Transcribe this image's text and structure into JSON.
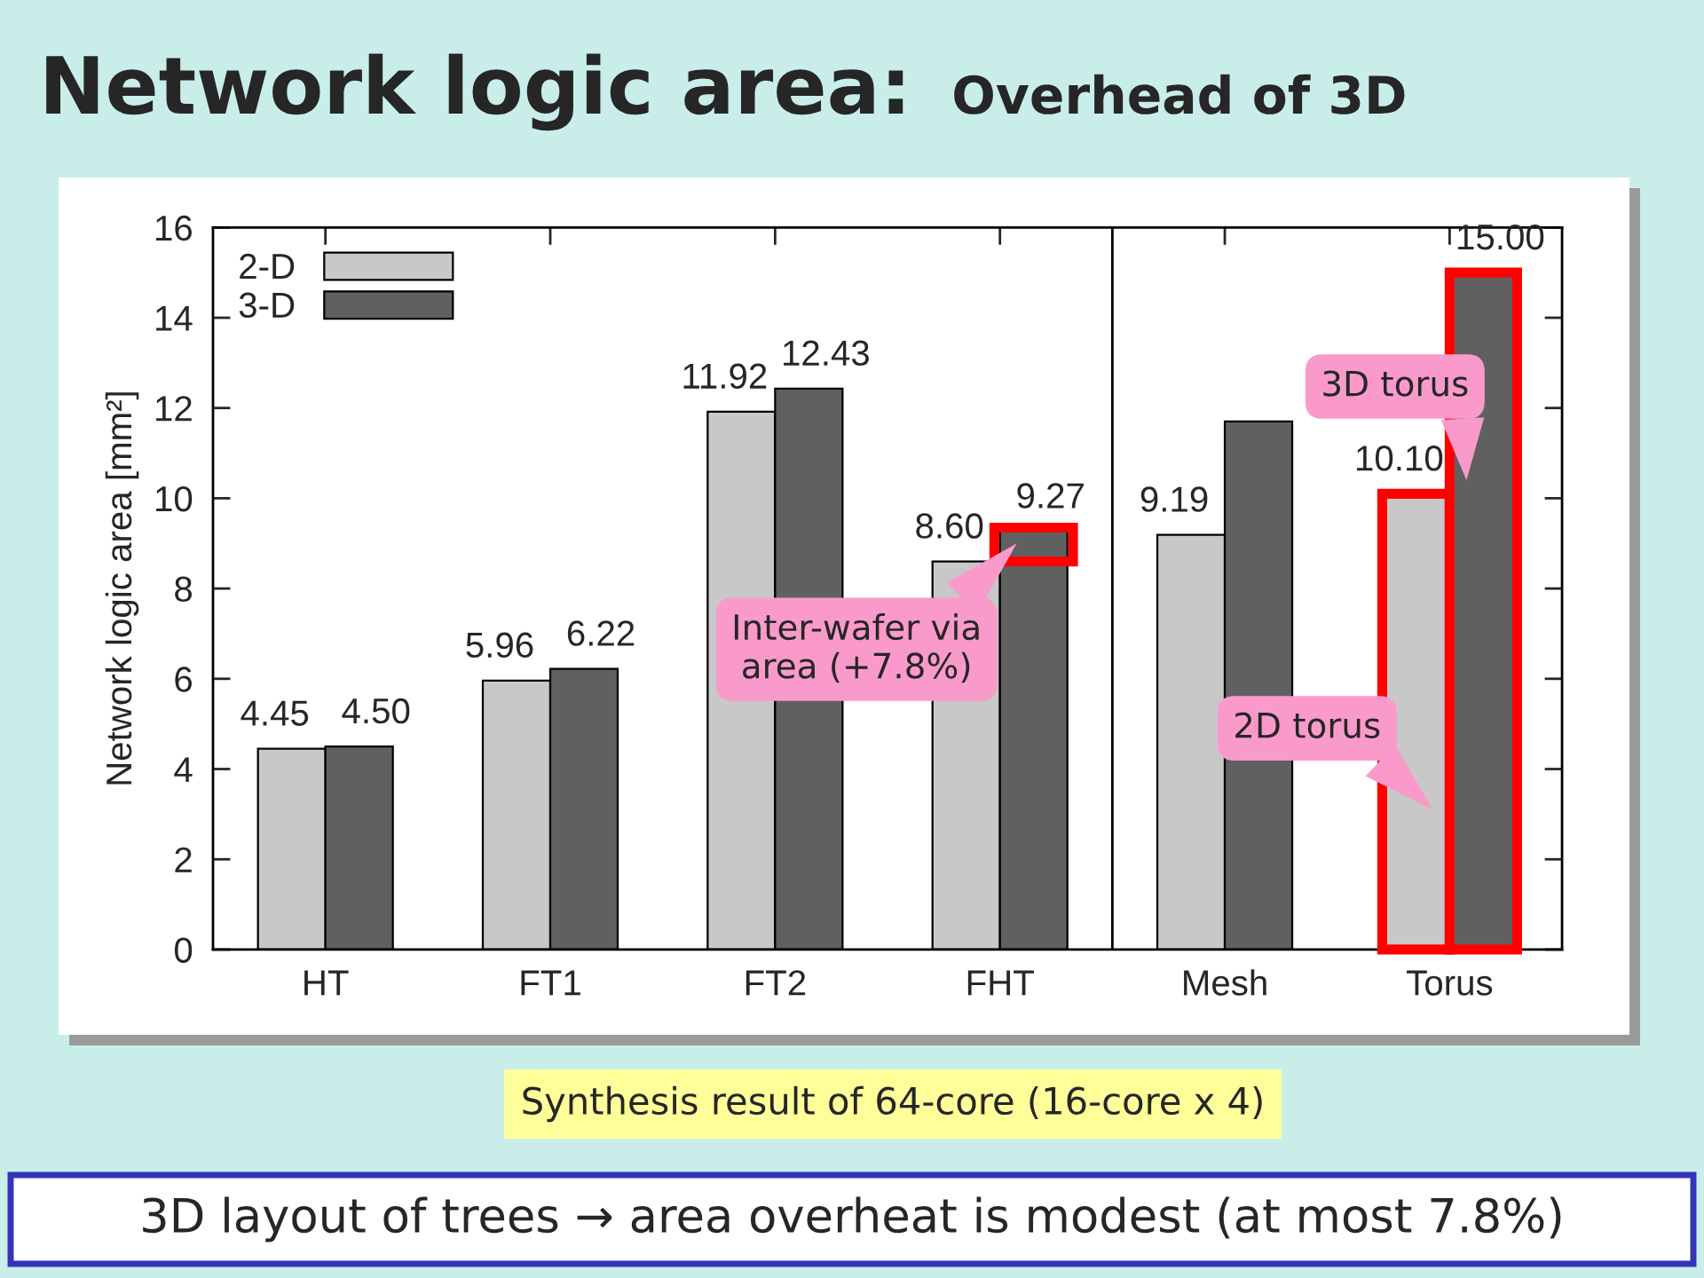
{
  "chart_data": {
    "type": "bar",
    "title": "Network logic area:",
    "subtitle": "Overhead of 3D",
    "ylabel": "Network logic area [mm²]",
    "categories": [
      "HT",
      "FT1",
      "FT2",
      "FHT",
      "Mesh",
      "Torus"
    ],
    "series": [
      {
        "name": "2-D",
        "color": "#c8c8c8",
        "values": [
          4.45,
          5.96,
          11.92,
          8.6,
          9.19,
          10.1
        ],
        "value_labels": [
          "4.45",
          "5.96",
          "11.92",
          "8.60",
          "9.19",
          "10.10"
        ]
      },
      {
        "name": "3-D",
        "color": "#606060",
        "values": [
          4.5,
          6.22,
          12.43,
          9.27,
          11.7,
          15.0
        ],
        "value_labels": [
          "4.50",
          "6.22",
          "12.43",
          "9.27",
          null,
          "15.00"
        ]
      }
    ],
    "ylim": [
      0,
      16
    ],
    "yticks": [
      0,
      2,
      4,
      6,
      8,
      10,
      12,
      14,
      16
    ],
    "grid": false,
    "legend": "top left",
    "annotations": [
      {
        "text": "Inter-wafer via\narea (+7.8%)",
        "x": "FHT",
        "y": 9.0
      },
      {
        "text": "3D torus",
        "x": "Torus",
        "y": 10.4
      },
      {
        "text": "2D torus",
        "x": "Torus",
        "y": 3.1
      },
      "Synthesis result of 64-core (16-core x 4)",
      "3D layout of trees → area overheat is modest (at most 7.8%)"
    ]
  }
}
